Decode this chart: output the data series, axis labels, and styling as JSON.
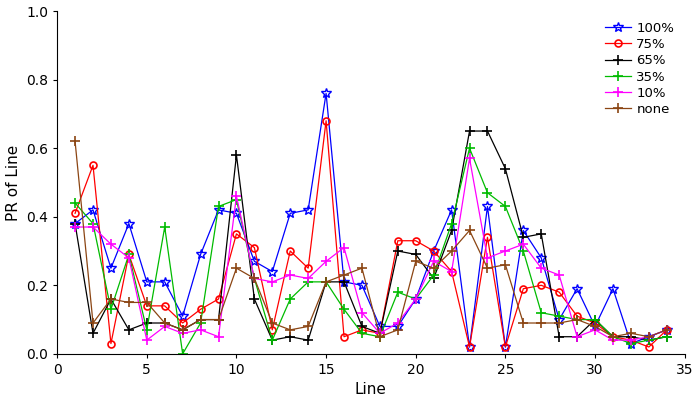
{
  "x": [
    1,
    2,
    3,
    4,
    5,
    6,
    7,
    8,
    9,
    10,
    11,
    12,
    13,
    14,
    15,
    16,
    17,
    18,
    19,
    20,
    21,
    22,
    23,
    24,
    25,
    26,
    27,
    28,
    29,
    30,
    31,
    32,
    33,
    34
  ],
  "series": {
    "100%": {
      "color": "#0000FF",
      "marker": "*",
      "markersize": 7,
      "values": [
        0.38,
        0.42,
        0.25,
        0.38,
        0.21,
        0.21,
        0.11,
        0.29,
        0.42,
        0.41,
        0.27,
        0.24,
        0.41,
        0.42,
        0.76,
        0.21,
        0.2,
        0.08,
        0.08,
        0.16,
        0.3,
        0.42,
        0.02,
        0.43,
        0.02,
        0.36,
        0.28,
        0.1,
        0.19,
        0.08,
        0.19,
        0.03,
        0.05,
        0.07
      ]
    },
    "75%": {
      "color": "#FF0000",
      "marker": "o",
      "markersize": 5,
      "values": [
        0.41,
        0.55,
        0.03,
        0.29,
        0.14,
        0.14,
        0.09,
        0.13,
        0.16,
        0.35,
        0.31,
        0.07,
        0.3,
        0.25,
        0.68,
        0.05,
        0.07,
        0.06,
        0.33,
        0.33,
        0.3,
        0.24,
        0.02,
        0.34,
        0.02,
        0.19,
        0.2,
        0.18,
        0.11,
        0.09,
        0.05,
        0.04,
        0.02,
        0.07
      ]
    },
    "65%": {
      "color": "#000000",
      "marker": "+",
      "markersize": 7,
      "values": [
        0.38,
        0.06,
        0.16,
        0.07,
        0.09,
        0.09,
        0.07,
        0.1,
        0.1,
        0.58,
        0.16,
        0.04,
        0.05,
        0.04,
        0.21,
        0.21,
        0.08,
        0.06,
        0.3,
        0.29,
        0.22,
        0.36,
        0.65,
        0.65,
        0.54,
        0.34,
        0.35,
        0.05,
        0.05,
        0.1,
        0.05,
        0.05,
        0.04,
        0.05
      ]
    },
    "35%": {
      "color": "#00BB00",
      "marker": "+",
      "markersize": 7,
      "values": [
        0.44,
        0.38,
        0.13,
        0.29,
        0.07,
        0.37,
        0.0,
        0.09,
        0.43,
        0.45,
        0.22,
        0.04,
        0.16,
        0.21,
        0.21,
        0.13,
        0.06,
        0.05,
        0.18,
        0.16,
        0.23,
        0.38,
        0.6,
        0.47,
        0.43,
        0.3,
        0.12,
        0.11,
        0.1,
        0.1,
        0.05,
        0.03,
        0.04,
        0.05
      ]
    },
    "10%": {
      "color": "#FF00FF",
      "marker": "+",
      "markersize": 7,
      "values": [
        0.37,
        0.37,
        0.32,
        0.28,
        0.04,
        0.08,
        0.06,
        0.07,
        0.05,
        0.46,
        0.22,
        0.21,
        0.23,
        0.22,
        0.27,
        0.31,
        0.12,
        0.06,
        0.09,
        0.16,
        0.27,
        0.24,
        0.57,
        0.28,
        0.3,
        0.32,
        0.25,
        0.23,
        0.05,
        0.07,
        0.04,
        0.04,
        0.05,
        0.07
      ]
    },
    "none": {
      "color": "#8B4513",
      "marker": "+",
      "markersize": 7,
      "values": [
        0.62,
        0.09,
        0.16,
        0.15,
        0.15,
        0.09,
        0.07,
        0.1,
        0.1,
        0.25,
        0.22,
        0.09,
        0.07,
        0.08,
        0.21,
        0.23,
        0.25,
        0.05,
        0.07,
        0.27,
        0.25,
        0.3,
        0.36,
        0.25,
        0.26,
        0.09,
        0.09,
        0.09,
        0.1,
        0.08,
        0.05,
        0.06,
        0.05,
        0.07
      ]
    }
  },
  "xlabel": "Line",
  "ylabel": "PR of Line",
  "xlim": [
    0,
    35
  ],
  "ylim": [
    0,
    1
  ],
  "xticks": [
    0,
    5,
    10,
    15,
    20,
    25,
    30,
    35
  ],
  "yticks": [
    0,
    0.2,
    0.4,
    0.6,
    0.8,
    1.0
  ],
  "legend_order": [
    "100%",
    "75%",
    "65%",
    "35%",
    "10%",
    "none"
  ],
  "background_color": "#FFFFFF",
  "linewidth": 0.9
}
